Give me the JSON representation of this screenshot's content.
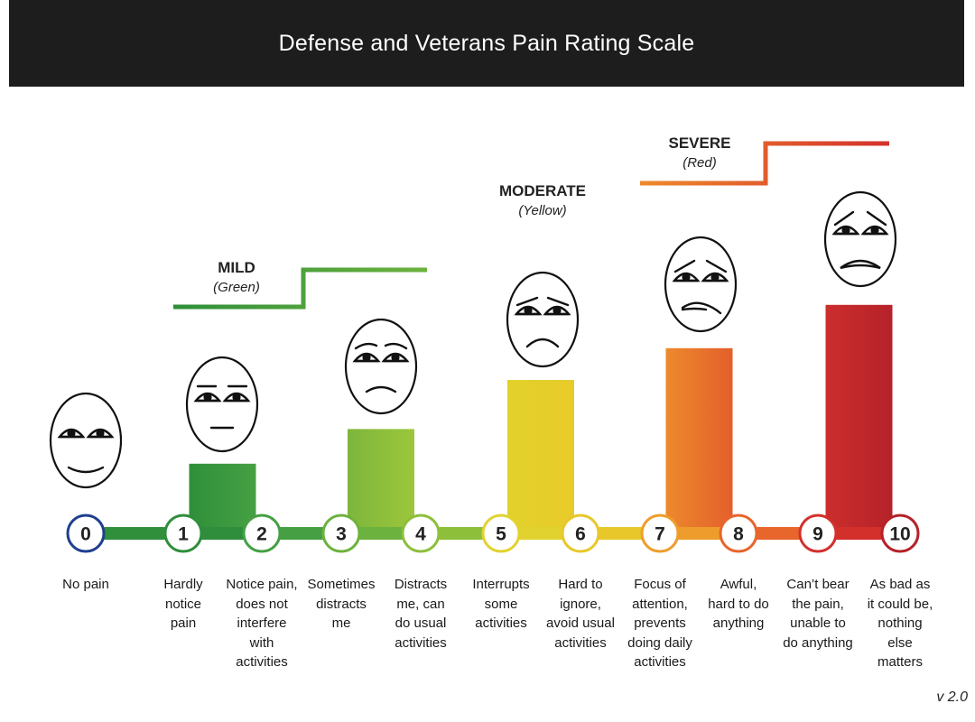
{
  "title": "Defense and Veterans Pain Rating Scale",
  "version": "v 2.0",
  "categories": {
    "mild": {
      "name": "MILD",
      "color_label": "(Green)",
      "color": "#3a9a3f"
    },
    "moderate": {
      "name": "MODERATE",
      "color_label": "(Yellow)",
      "color": "#e3d12b"
    },
    "severe": {
      "name": "SEVERE",
      "color_label": "(Red)",
      "color": "#d23a2e"
    }
  },
  "levels": [
    {
      "number": "0",
      "description": "No pain",
      "ring_color": "#1f3f8f",
      "bar_value": 0,
      "bar_color": "#2f8f3a",
      "face": "happy"
    },
    {
      "number": "1",
      "description": "Hardly\nnotice\npain",
      "ring_color": "#2e8e3c",
      "bar_value": 0,
      "bar_color": "#2f8f3a",
      "face": "neutral"
    },
    {
      "number": "2",
      "description": "Notice pain,\ndoes not\ninterfere\nwith\nactivities",
      "ring_color": "#46a043",
      "bar_value": 2.6,
      "bar_color": "#3a9a3f",
      "face": "neutral"
    },
    {
      "number": "3",
      "description": "Sometimes\ndistracts\nme",
      "ring_color": "#6cb23e",
      "bar_value": 0,
      "bar_color": "#6cb23e",
      "face": "worried"
    },
    {
      "number": "4",
      "description": "Distracts\nme, can\ndo usual\nactivities",
      "ring_color": "#8dbf3b",
      "bar_value": 3.8,
      "bar_color": "#8cbf3c",
      "face": "worried"
    },
    {
      "number": "5",
      "description": "Interrupts\nsome\nactivities",
      "ring_color": "#e2d22f",
      "bar_value": 0,
      "bar_color": "#e2d22f",
      "face": "sad"
    },
    {
      "number": "6",
      "description": "Hard to\nignore,\navoid usual\nactivities",
      "ring_color": "#e8c72a",
      "bar_value": 5.5,
      "bar_color": "#e5cf2b",
      "face": "sad"
    },
    {
      "number": "7",
      "description": "Focus of\nattention,\nprevents\ndoing daily\nactivities",
      "ring_color": "#ee9d2c",
      "bar_value": 0,
      "bar_color": "#ee9d2c",
      "face": "anguish"
    },
    {
      "number": "8",
      "description": "Awful,\nhard to do\nanything",
      "ring_color": "#e8652b",
      "bar_value": 6.6,
      "bar_color": "#e9742c",
      "face": "anguish"
    },
    {
      "number": "9",
      "description": "Can’t bear\nthe pain,\nunable to\ndo anything",
      "ring_color": "#d3302c",
      "bar_value": 0,
      "bar_color": "#d3302c",
      "face": "crying"
    },
    {
      "number": "10",
      "description": "As bad as\nit could be,\nnothing\nelse\nmatters",
      "ring_color": "#b5222a",
      "bar_value": 8.1,
      "bar_color": "#c0262b",
      "face": "crying"
    }
  ]
}
